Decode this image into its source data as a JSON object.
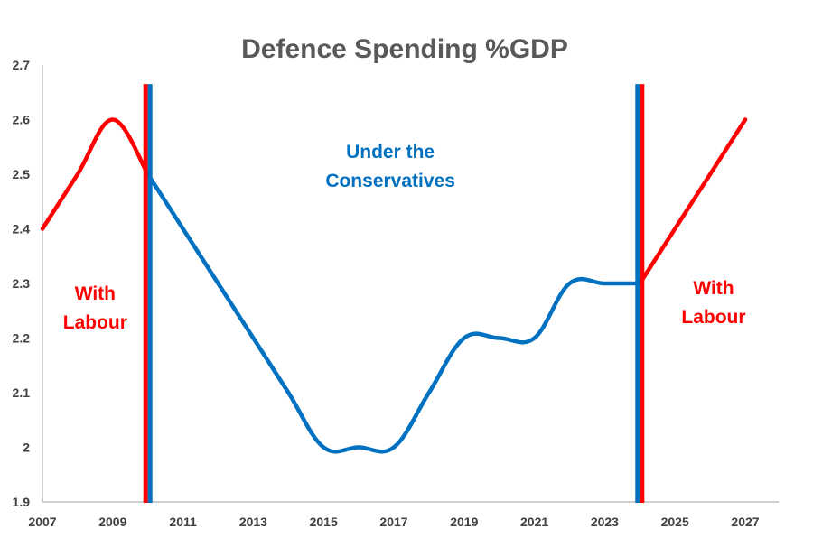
{
  "chart_data": {
    "type": "line",
    "title": "Defence Spending %GDP",
    "xlabel": "",
    "ylabel": "",
    "xlim": [
      2007,
      2027
    ],
    "ylim": [
      1.9,
      2.7
    ],
    "x_ticks": [
      "2007",
      "2009",
      "2011",
      "2013",
      "2015",
      "2017",
      "2019",
      "2021",
      "2023",
      "2025",
      "2027"
    ],
    "y_ticks": [
      "1.9",
      "2",
      "2.1",
      "2.2",
      "2.3",
      "2.4",
      "2.5",
      "2.6",
      "2.7"
    ],
    "grid": false,
    "legend": "none",
    "series": [
      {
        "color": "#ff0000",
        "x": [
          2007,
          2008,
          2009,
          2010
        ],
        "y": [
          2.4,
          2.5,
          2.6,
          2.5
        ]
      },
      {
        "color": "#0070c0",
        "x": [
          2010,
          2011,
          2012,
          2013,
          2014,
          2015,
          2016,
          2017,
          2018,
          2019,
          2020,
          2021,
          2022,
          2023,
          2024
        ],
        "y": [
          2.5,
          2.4,
          2.3,
          2.2,
          2.1,
          2.0,
          2.0,
          2.0,
          2.1,
          2.2,
          2.2,
          2.2,
          2.3,
          2.3,
          2.3
        ]
      },
      {
        "color": "#ff0000",
        "x": [
          2024,
          2027
        ],
        "y": [
          2.3,
          2.6
        ]
      }
    ],
    "divider_years": [
      2010,
      2024
    ],
    "divider_colors": [
      "#ff0000",
      "#0070c0"
    ],
    "annotations": [
      {
        "lines": [
          "With",
          "Labour"
        ],
        "x": 2008.5,
        "y": 2.27,
        "color": "#ff0000"
      },
      {
        "lines": [
          "Under the",
          "Conservatives"
        ],
        "x": 2016.9,
        "y": 2.53,
        "color": "#0070c0"
      },
      {
        "lines": [
          "With",
          "Labour"
        ],
        "x": 2026.1,
        "y": 2.28,
        "color": "#ff0000"
      }
    ]
  }
}
